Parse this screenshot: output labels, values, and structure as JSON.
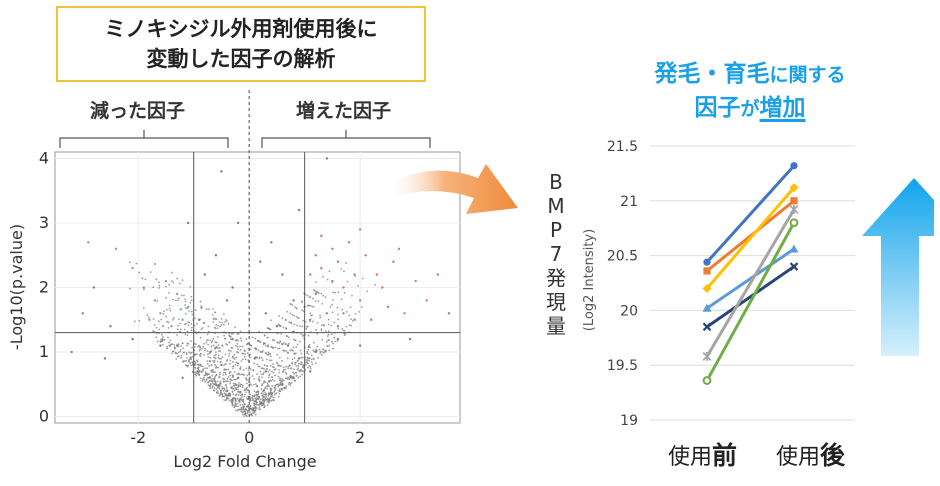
{
  "title": {
    "line1": "ミノキシジル外用剤使用後に",
    "line2": "変動した因子の解析"
  },
  "groups": {
    "down": "減った因子",
    "up": "増えた因子"
  },
  "right_title": {
    "part1": "発毛・育毛",
    "part2": "に関する",
    "part3": "因子",
    "part4": "が",
    "part5": "増加"
  },
  "bmp7_label": [
    "B",
    "M",
    "P",
    "7",
    "発",
    "現",
    "量"
  ],
  "colors": {
    "up": "#e07060",
    "down": "#6aaad8",
    "ns": "#7f7f7f",
    "accent_blue": "#1aa0e6",
    "frame": "#f0c23a"
  },
  "chart_data": [
    {
      "type": "scatter",
      "title": "",
      "xlabel": "Log2 Fold Change",
      "ylabel": "-Log10(p.value)",
      "xlim": [
        -3.5,
        3.8
      ],
      "ylim": [
        -0.1,
        4.1
      ],
      "x_ticks": [
        "-2",
        "0",
        "2"
      ],
      "x_tick_values": [
        -2,
        0,
        2
      ],
      "y_ticks": [
        "0",
        "1",
        "2",
        "3",
        "4"
      ],
      "y_tick_values": [
        0,
        1,
        2,
        3,
        4
      ],
      "threshold_lines": {
        "x": [
          -1,
          1
        ],
        "y": 1.3,
        "x_center": 0
      },
      "grid": true,
      "series": [
        {
          "color_key": "up",
          "points": [
            [
              1.1,
              1.5
            ],
            [
              1.3,
              2.3
            ],
            [
              1.5,
              2.6
            ],
            [
              1.7,
              2.0
            ],
            [
              2.0,
              1.8
            ],
            [
              2.3,
              2.2
            ],
            [
              1.2,
              1.9
            ],
            [
              1.8,
              2.7
            ],
            [
              2.6,
              2.4
            ],
            [
              1.4,
              1.6
            ],
            [
              2.1,
              2.5
            ],
            [
              1.6,
              1.4
            ],
            [
              2.5,
              1.7
            ],
            [
              3.0,
              2.1
            ],
            [
              2.8,
              1.6
            ],
            [
              1.9,
              2.2
            ],
            [
              1.3,
              2.8
            ],
            [
              2.2,
              1.5
            ],
            [
              1.0,
              1.7
            ],
            [
              1.5,
              2.1
            ],
            [
              3.2,
              1.8
            ],
            [
              2.4,
              2.0
            ],
            [
              1.7,
              1.6
            ],
            [
              1.2,
              2.5
            ],
            [
              2.7,
              2.6
            ],
            [
              1.9,
              1.5
            ],
            [
              1.1,
              2.2
            ],
            [
              2.0,
              2.9
            ],
            [
              3.4,
              2.2
            ],
            [
              1.6,
              2.4
            ]
          ]
        },
        {
          "color_key": "down",
          "points": [
            [
              -1.5,
              2.1
            ],
            [
              -1.7,
              1.8
            ],
            [
              -1.2,
              1.5
            ],
            [
              -1.9,
              2.0
            ],
            [
              -1.6,
              1.6
            ],
            [
              -2.1,
              2.3
            ],
            [
              -1.3,
              1.9
            ],
            [
              -1.4,
              1.4
            ],
            [
              -2.4,
              2.6
            ],
            [
              -1.1,
              1.7
            ],
            [
              -1.8,
              1.5
            ],
            [
              -2.9,
              2.7
            ]
          ]
        },
        {
          "color_key": "ns",
          "points": [
            [
              -2.8,
              2.0
            ],
            [
              -3.0,
              1.6
            ],
            [
              -2.5,
              1.4
            ],
            [
              -0.5,
              3.8
            ],
            [
              0.9,
              3.2
            ],
            [
              -0.2,
              3.0
            ],
            [
              0.4,
              2.7
            ],
            [
              -0.6,
              2.5
            ],
            [
              3.6,
              1.6
            ],
            [
              -3.2,
              1.0
            ],
            [
              2.9,
              1.2
            ],
            [
              -2.6,
              0.9
            ],
            [
              1.4,
              4.0
            ],
            [
              -1.1,
              3.0
            ],
            [
              0.6,
              2.2
            ],
            [
              -0.4,
              1.8
            ],
            [
              0.2,
              2.4
            ],
            [
              -0.8,
              2.2
            ],
            [
              0.8,
              1.8
            ],
            [
              -0.9,
              1.5
            ],
            [
              0.5,
              1.4
            ],
            [
              -0.3,
              1.2
            ],
            [
              0.7,
              1.1
            ],
            [
              -0.7,
              1.0
            ],
            [
              0.1,
              0.9
            ],
            [
              -0.5,
              0.8
            ],
            [
              0.3,
              0.7
            ],
            [
              -0.2,
              0.6
            ],
            [
              0.6,
              0.5
            ],
            [
              -0.6,
              0.5
            ],
            [
              0.0,
              0.3
            ],
            [
              0.2,
              0.2
            ],
            [
              -0.1,
              0.15
            ],
            [
              0.4,
              0.35
            ],
            [
              -0.4,
              0.4
            ],
            [
              0.9,
              0.9
            ],
            [
              -1.0,
              0.8
            ],
            [
              1.2,
              1.0
            ],
            [
              -1.3,
              1.1
            ],
            [
              1.6,
              1.2
            ],
            [
              -1.6,
              1.1
            ],
            [
              2.0,
              1.1
            ],
            [
              -2.1,
              1.2
            ],
            [
              1.1,
              0.7
            ],
            [
              -1.2,
              0.6
            ],
            [
              0.8,
              0.6
            ],
            [
              -0.9,
              0.7
            ],
            [
              0.3,
              1.6
            ],
            [
              -0.3,
              2.0
            ],
            [
              0.0,
              1.3
            ]
          ]
        }
      ]
    },
    {
      "type": "line",
      "title": "",
      "xlabel": "",
      "ylabel": "(Log2 Intensity)",
      "categories": [
        "使用前",
        "使用後"
      ],
      "category_parts": [
        {
          "normal": "使用",
          "bold": "前"
        },
        {
          "normal": "使用",
          "bold": "後"
        }
      ],
      "ylim": [
        19,
        21.5
      ],
      "y_ticks": [
        "19",
        "19.5",
        "20",
        "20.5",
        "21",
        "21.5"
      ],
      "y_tick_values": [
        19,
        19.5,
        20,
        20.5,
        21,
        21.5
      ],
      "grid": true,
      "series": [
        {
          "values": [
            20.44,
            21.32
          ],
          "color": "#4472c4",
          "marker": "circle"
        },
        {
          "values": [
            20.36,
            21.0
          ],
          "color": "#ed7d31",
          "marker": "square"
        },
        {
          "values": [
            20.2,
            21.12
          ],
          "color": "#ffc000",
          "marker": "diamond"
        },
        {
          "values": [
            20.02,
            20.56
          ],
          "color": "#5b9bd5",
          "marker": "triangle"
        },
        {
          "values": [
            19.85,
            20.4
          ],
          "color": "#264478",
          "marker": "x"
        },
        {
          "values": [
            19.58,
            20.92
          ],
          "color": "#a5a5a5",
          "marker": "star"
        },
        {
          "values": [
            19.36,
            20.8
          ],
          "color": "#70ad47",
          "marker": "circle-open"
        }
      ]
    }
  ]
}
